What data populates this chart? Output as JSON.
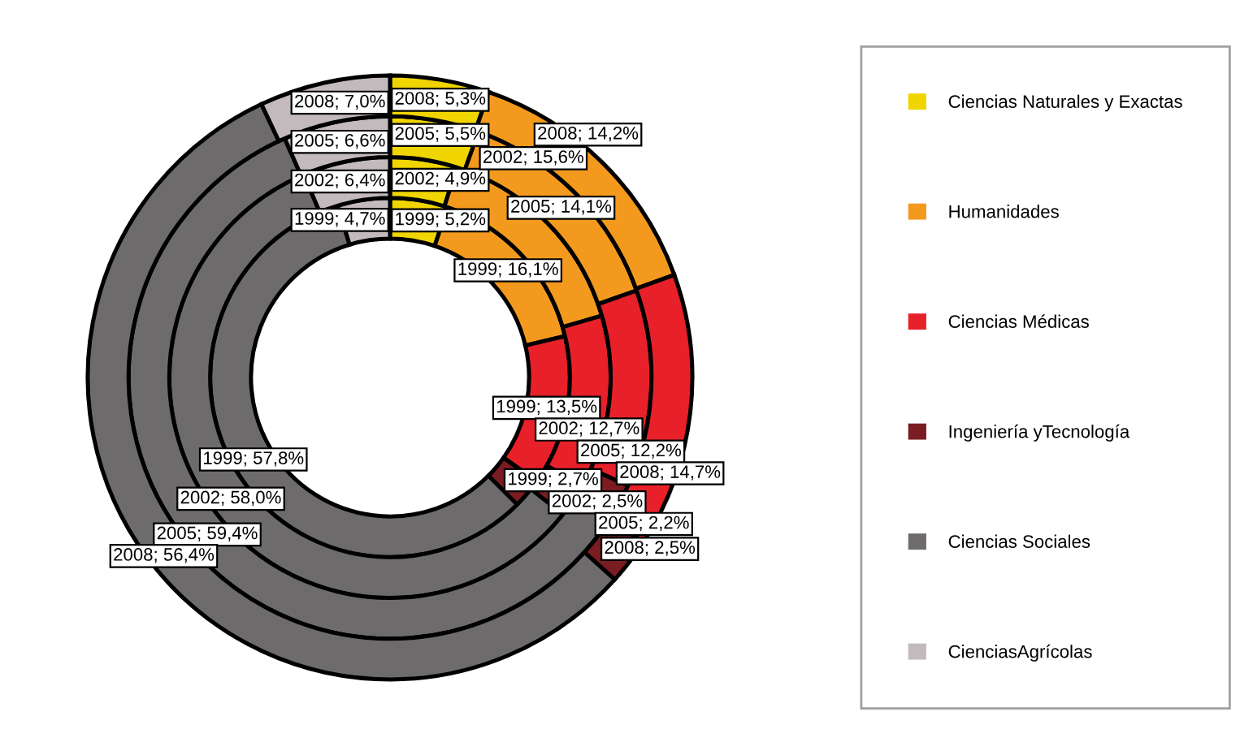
{
  "chart_data": {
    "type": "donut",
    "categories": [
      "Ciencias Naturales y Exactas",
      "Humanidades",
      "Ciencias Médicas",
      "Ingeniería yTecnología",
      "Ciencias Sociales",
      "CienciasAgrícolas"
    ],
    "colors": [
      "#f0d500",
      "#f39a1e",
      "#e8202a",
      "#7a1c22",
      "#6e6b6c",
      "#c3babd"
    ],
    "series": [
      {
        "values": [
          5.2,
          16.1,
          13.5,
          2.7,
          57.8,
          4.7
        ],
        "value_labels": [
          "1999; 5,2%",
          "1999; 16,1%",
          "1999; 13,5%",
          "1999; 2,7%",
          "1999; 57,8%",
          "1999; 4,7%"
        ]
      },
      {
        "values": [
          4.9,
          15.6,
          12.7,
          2.5,
          58.0,
          6.4
        ],
        "value_labels": [
          "2002; 4,9%",
          "2002; 15,6%",
          "2002; 12,7%",
          "2002; 2,5%",
          "2002; 58,0%",
          "2002; 6,4%"
        ]
      },
      {
        "values": [
          5.5,
          14.1,
          12.2,
          2.2,
          59.4,
          6.6
        ],
        "value_labels": [
          "2005; 5,5%",
          "2005; 14,1%",
          "2005; 12,2%",
          "2005; 2,2%",
          "2005; 59,4%",
          "2005; 6,6%"
        ]
      },
      {
        "values": [
          5.3,
          14.2,
          14.7,
          2.5,
          56.4,
          7.0
        ],
        "value_labels": [
          "2008; 5,3%",
          "2008; 14,2%",
          "2008; 14,7%",
          "2008; 2,5%",
          "2008; 56,4%",
          "2008; 7,0%"
        ]
      }
    ],
    "legend": "right"
  }
}
